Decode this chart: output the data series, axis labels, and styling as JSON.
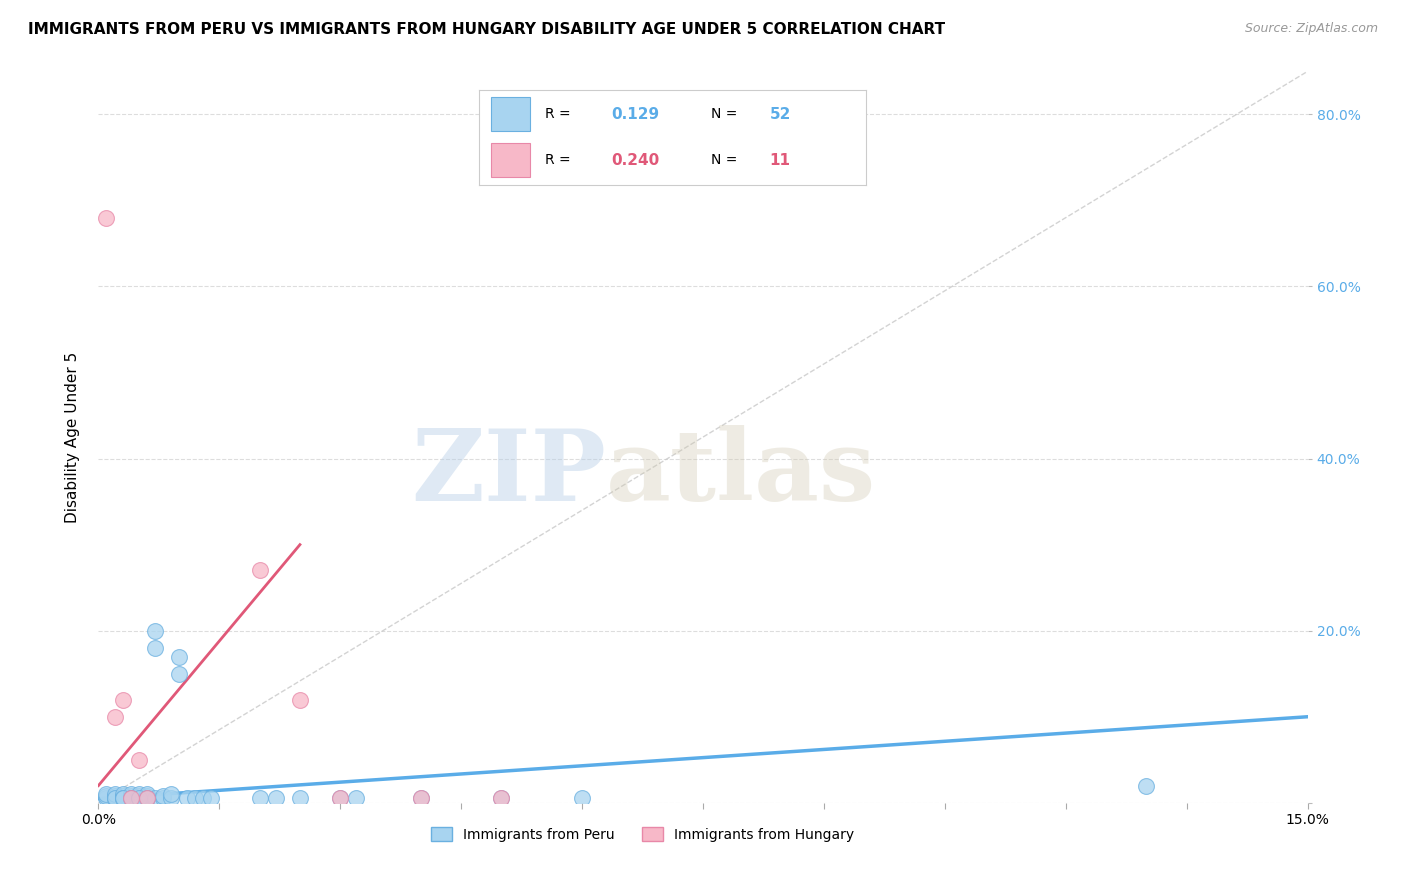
{
  "title": "IMMIGRANTS FROM PERU VS IMMIGRANTS FROM HUNGARY DISABILITY AGE UNDER 5 CORRELATION CHART",
  "source": "Source: ZipAtlas.com",
  "ylabel": "Disability Age Under 5",
  "xlim": [
    0.0,
    0.15
  ],
  "ylim": [
    0.0,
    0.85
  ],
  "ytick_values": [
    0.0,
    0.2,
    0.4,
    0.6,
    0.8
  ],
  "ytick_labels_right": [
    "",
    "20.0%",
    "40.0%",
    "60.0%",
    "80.0%"
  ],
  "peru_color": "#a8d4f0",
  "hungary_color": "#f7b8c8",
  "peru_edge_color": "#6ab0e0",
  "hungary_edge_color": "#e888a8",
  "trend_line_color_peru": "#5aace8",
  "trend_line_color_hungary": "#e05878",
  "diagonal_color": "#c8c8c8",
  "watermark_zip": "ZIP",
  "watermark_atlas": "atlas",
  "background_color": "#ffffff",
  "grid_color": "#dddddd",
  "peru_R": "0.129",
  "peru_N": "52",
  "hungary_R": "0.240",
  "hungary_N": "11",
  "peru_x": [
    0.001,
    0.001,
    0.001,
    0.002,
    0.002,
    0.002,
    0.002,
    0.002,
    0.003,
    0.003,
    0.003,
    0.003,
    0.003,
    0.004,
    0.004,
    0.004,
    0.004,
    0.004,
    0.005,
    0.005,
    0.005,
    0.005,
    0.006,
    0.006,
    0.006,
    0.006,
    0.007,
    0.007,
    0.007,
    0.008,
    0.008,
    0.009,
    0.009,
    0.01,
    0.01,
    0.011,
    0.012,
    0.013,
    0.014,
    0.02,
    0.022,
    0.025,
    0.03,
    0.032,
    0.04,
    0.05,
    0.06,
    0.13,
    0.003,
    0.004,
    0.005,
    0.006
  ],
  "peru_y": [
    0.005,
    0.008,
    0.01,
    0.005,
    0.008,
    0.005,
    0.01,
    0.005,
    0.005,
    0.008,
    0.005,
    0.01,
    0.005,
    0.005,
    0.008,
    0.005,
    0.01,
    0.005,
    0.005,
    0.008,
    0.005,
    0.01,
    0.005,
    0.008,
    0.005,
    0.01,
    0.2,
    0.18,
    0.005,
    0.005,
    0.008,
    0.005,
    0.01,
    0.17,
    0.15,
    0.005,
    0.005,
    0.005,
    0.005,
    0.005,
    0.005,
    0.005,
    0.005,
    0.005,
    0.005,
    0.005,
    0.005,
    0.02,
    0.005,
    0.005,
    0.005,
    0.005
  ],
  "hungary_x": [
    0.001,
    0.002,
    0.003,
    0.004,
    0.005,
    0.006,
    0.02,
    0.025,
    0.03,
    0.04,
    0.05
  ],
  "hungary_y": [
    0.68,
    0.1,
    0.12,
    0.005,
    0.05,
    0.005,
    0.27,
    0.12,
    0.005,
    0.005,
    0.005
  ],
  "peru_trend_x": [
    0.0,
    0.15
  ],
  "peru_trend_y": [
    0.005,
    0.1
  ],
  "hungary_trend_x": [
    0.0,
    0.025
  ],
  "hungary_trend_y": [
    0.02,
    0.3
  ]
}
